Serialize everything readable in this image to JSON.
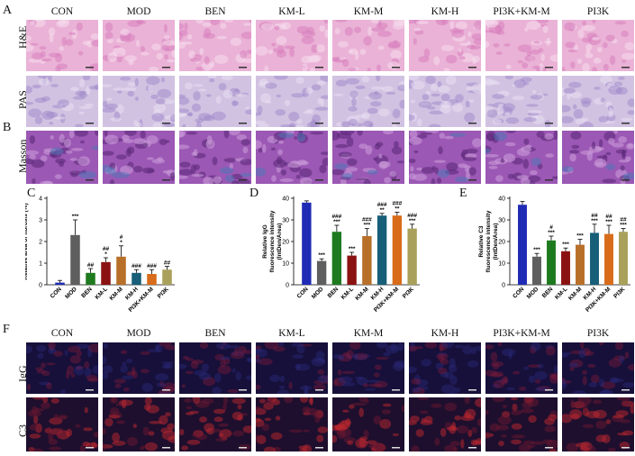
{
  "panel_labels": {
    "a": "A",
    "b": "B",
    "c": "C",
    "d": "D",
    "e": "E",
    "f": "F"
  },
  "groups": [
    "CON",
    "MOD",
    "BEN",
    "KM-L",
    "KM-M",
    "KM-H",
    "PI3K+KM-M",
    "PI3K"
  ],
  "histology_rows": [
    "H&E",
    "PAS",
    "Masson"
  ],
  "fluor_rows": [
    "IgG",
    "C3"
  ],
  "stain_colors": {
    "he": "#e8a8d0",
    "pas": "#c9b4dc",
    "masson": "#8a4aa6",
    "fluor_bg": "#160c2e",
    "fluor_red": "#c0282e"
  },
  "chart_data": [
    {
      "type": "bar",
      "panel": "C",
      "categories": [
        "CON",
        "MOD",
        "BEN",
        "KM-L",
        "KM-M",
        "KM-H",
        "PI3K+KM-M",
        "PI3K"
      ],
      "values": [
        0.1,
        2.3,
        0.55,
        1.05,
        1.3,
        0.55,
        0.5,
        0.7
      ],
      "errors": [
        0.1,
        0.7,
        0.2,
        0.2,
        0.5,
        0.15,
        0.2,
        0.15
      ],
      "colors": [
        "#1f2bb5",
        "#5f5f5f",
        "#1e7a1e",
        "#8b1212",
        "#b86f28",
        "#175e78",
        "#d86c1a",
        "#a9a15b"
      ],
      "sig_top": [
        "",
        "***",
        "",
        "",
        "",
        "",
        "",
        ""
      ],
      "sig_bottom": [
        "",
        "",
        "##",
        "##",
        "#",
        "###",
        "###",
        "##"
      ],
      "sig_extra": [
        "",
        "",
        "",
        "*",
        "*",
        "",
        "",
        ""
      ],
      "ylabel": "Relative area of fibrosis (%)",
      "ylim": [
        0,
        4
      ],
      "yticks": [
        0,
        1,
        2,
        3,
        4
      ]
    },
    {
      "type": "bar",
      "panel": "D",
      "categories": [
        "CON",
        "MOD",
        "BEN",
        "KM-L",
        "KM-M",
        "KM-H",
        "PI3K+KM-M",
        "PI3K"
      ],
      "values": [
        38,
        11,
        24.5,
        13.5,
        22.5,
        32,
        32,
        26
      ],
      "errors": [
        0.8,
        1,
        3,
        1.5,
        3.5,
        1,
        1.5,
        2
      ],
      "colors": [
        "#1f2bb5",
        "#5f5f5f",
        "#1e7a1e",
        "#8b1212",
        "#b86f28",
        "#175e78",
        "#d86c1a",
        "#a9a15b"
      ],
      "sig_top": [
        "",
        "***",
        "***",
        "***",
        "***",
        "**",
        "**",
        "***"
      ],
      "sig_bottom": [
        "",
        "",
        "###",
        "",
        "###",
        "###",
        "###",
        "###"
      ],
      "ylabel": "Relative IgG fluorescence intensity (IntDen/Area)",
      "ylim": [
        0,
        40
      ],
      "yticks": [
        0,
        10,
        20,
        30,
        40
      ]
    },
    {
      "type": "bar",
      "panel": "E",
      "categories": [
        "CON",
        "MOD",
        "BEN",
        "KM-L",
        "KM-M",
        "KM-H",
        "PI3K+KM-M",
        "PI3K"
      ],
      "values": [
        37,
        13,
        20.5,
        15.5,
        18.5,
        24,
        23.5,
        24.5
      ],
      "errors": [
        1.5,
        1.5,
        2,
        1.5,
        2.5,
        4,
        4,
        1.5
      ],
      "colors": [
        "#1f2bb5",
        "#5f5f5f",
        "#1e7a1e",
        "#8b1212",
        "#b86f28",
        "#175e78",
        "#d86c1a",
        "#a9a15b"
      ],
      "sig_top": [
        "",
        "***",
        "***",
        "***",
        "***",
        "***",
        "***",
        "***"
      ],
      "sig_bottom": [
        "",
        "",
        "#",
        "",
        "",
        "##",
        "##",
        "##"
      ],
      "ylabel": "Relative C3 fluorescence intensity (IntDen/Area)",
      "ylim": [
        0,
        40
      ],
      "yticks": [
        0,
        10,
        20,
        30,
        40
      ]
    }
  ]
}
